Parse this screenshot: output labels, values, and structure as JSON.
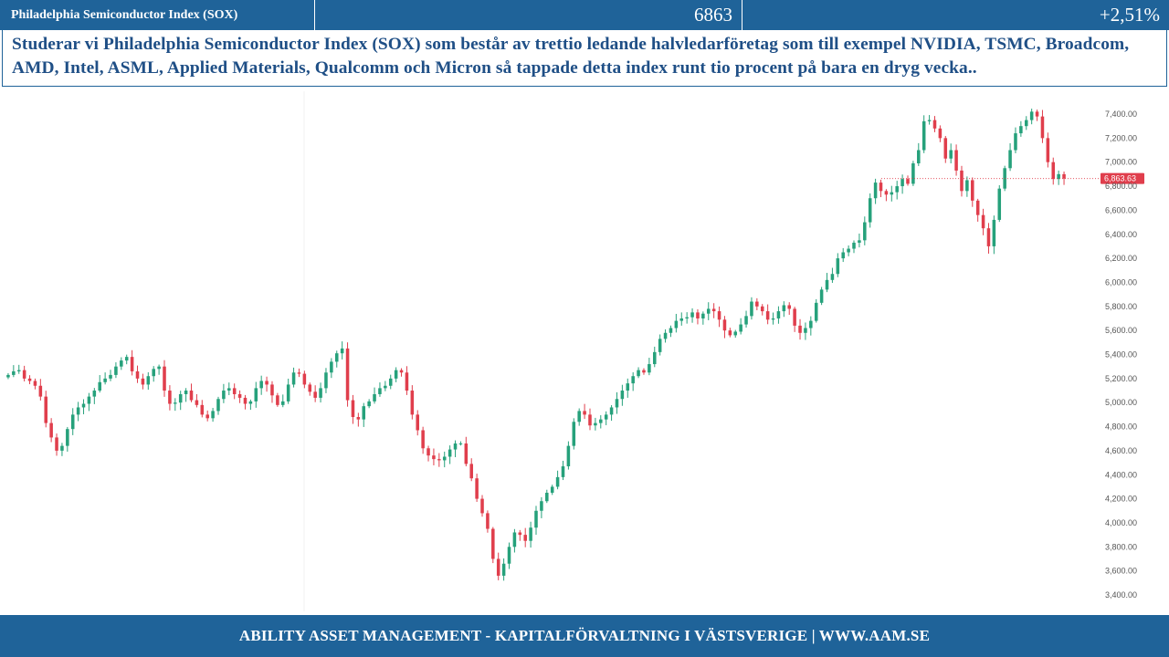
{
  "header": {
    "index_name": "Philadelphia Semiconductor Index (SOX)",
    "price": "6863",
    "change": "+2,51%"
  },
  "headline": "Studerar vi Philadelphia Semiconductor Index (SOX) som består av trettio ledande halvledarföretag som till exempel NVIDIA, TSMC, Broadcom, AMD, Intel, ASML, Applied Materials, Qualcomm och Micron så tappade detta index runt tio procent på bara en dryg vecka..",
  "footer": {
    "text": "ABILITY ASSET MANAGEMENT -  KAPITALFÖRVALTNING I VÄSTSVERIGE   |   WWW.AAM.SE"
  },
  "colors": {
    "brand_blue": "#1f6399",
    "up": "#26a17b",
    "down": "#e03e4c",
    "price_tag": "#e03e4c"
  },
  "chart_data": {
    "type": "candlestick",
    "title": "",
    "xlabel": "",
    "ylabel": "",
    "y_ticks": [
      "3,400.00",
      "3,600.00",
      "3,800.00",
      "4,000.00",
      "4,200.00",
      "4,400.00",
      "4,600.00",
      "4,800.00",
      "5,000.00",
      "5,200.00",
      "5,400.00",
      "5,600.00",
      "5,800.00",
      "6,000.00",
      "6,200.00",
      "6,400.00",
      "6,600.00",
      "6,800.00",
      "7,000.00",
      "7,200.00",
      "7,400.00"
    ],
    "ylim": [
      3320,
      7580
    ],
    "last_price_label": "6,863.63",
    "last_price": 6863.63,
    "grid": false,
    "close_series_approx": [
      5230,
      5260,
      5270,
      5200,
      5180,
      5140,
      5050,
      4830,
      4710,
      4600,
      4640,
      4780,
      4900,
      4960,
      4990,
      5050,
      5100,
      5170,
      5200,
      5230,
      5300,
      5350,
      5380,
      5260,
      5200,
      5150,
      5220,
      5280,
      5300,
      5100,
      4990,
      5000,
      5070,
      5100,
      5020,
      4980,
      4900,
      4870,
      4930,
      5030,
      5100,
      5120,
      5070,
      5040,
      4990,
      5010,
      5120,
      5180,
      5150,
      5060,
      4980,
      5010,
      5150,
      5250,
      5240,
      5150,
      5090,
      5040,
      5120,
      5250,
      5340,
      5410,
      5450,
      5020,
      4880,
      4860,
      4970,
      5010,
      5070,
      5120,
      5140,
      5200,
      5270,
      5250,
      5100,
      4900,
      4770,
      4620,
      4560,
      4530,
      4520,
      4550,
      4610,
      4660,
      4660,
      4490,
      4370,
      4200,
      4080,
      3950,
      3700,
      3560,
      3660,
      3800,
      3920,
      3900,
      3850,
      3960,
      4100,
      4180,
      4250,
      4300,
      4380,
      4470,
      4640,
      4840,
      4930,
      4900,
      4810,
      4830,
      4860,
      4900,
      4960,
      5030,
      5100,
      5160,
      5220,
      5270,
      5250,
      5320,
      5420,
      5530,
      5580,
      5620,
      5680,
      5700,
      5710,
      5750,
      5700,
      5740,
      5780,
      5760,
      5690,
      5600,
      5560,
      5590,
      5650,
      5720,
      5840,
      5800,
      5760,
      5690,
      5700,
      5760,
      5810,
      5780,
      5640,
      5580,
      5620,
      5680,
      5830,
      5940,
      6020,
      6070,
      6200,
      6250,
      6280,
      6330,
      6350,
      6500,
      6700,
      6830,
      6760,
      6730,
      6750,
      6800,
      6860,
      6820,
      6990,
      7100,
      7340,
      7350,
      7280,
      7200,
      7030,
      7100,
      6930,
      6760,
      6850,
      6680,
      6560,
      6450,
      6300,
      6520,
      6780,
      6950,
      7100,
      7240,
      7300,
      7350,
      7420,
      7380,
      7200,
      7000,
      6860,
      6900,
      6863.63
    ]
  }
}
